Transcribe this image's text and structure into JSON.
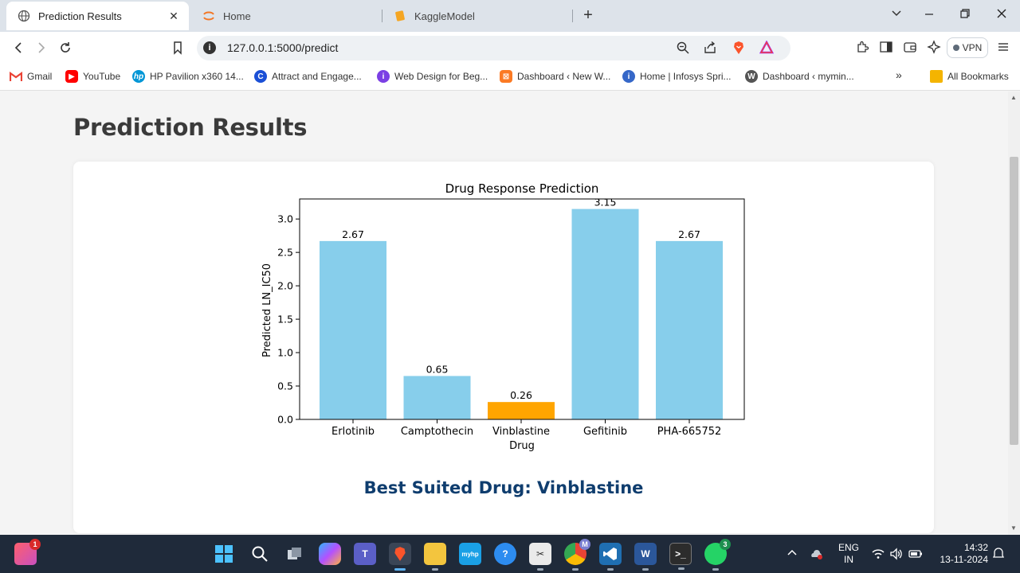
{
  "browser": {
    "tabs": [
      {
        "title": "Prediction Results",
        "active": true
      },
      {
        "title": "Home",
        "active": false
      },
      {
        "title": "KaggleModel",
        "active": false
      }
    ],
    "url": "127.0.0.1:5000/predict",
    "vpn_label": "VPN",
    "bookmarks": [
      {
        "label": "Gmail",
        "icon": "gmail-icon"
      },
      {
        "label": "YouTube",
        "icon": "youtube-icon"
      },
      {
        "label": "HP Pavilion x360 14...",
        "icon": "hp-icon"
      },
      {
        "label": "Attract and Engage...",
        "icon": "c-logo-icon"
      },
      {
        "label": "Web Design for Beg...",
        "icon": "purple-logo-icon"
      },
      {
        "label": "Dashboard ‹ New W...",
        "icon": "xampp-icon"
      },
      {
        "label": "Home | Infosys Spri...",
        "icon": "infosys-icon"
      },
      {
        "label": "Dashboard ‹ mymin...",
        "icon": "wordpress-icon"
      }
    ],
    "all_bookmarks_label": "All Bookmarks"
  },
  "page": {
    "title": "Prediction Results",
    "best_label": "Best Suited Drug: Vinblastine"
  },
  "chart_data": {
    "type": "bar",
    "title": "Drug Response Prediction",
    "xlabel": "Drug",
    "ylabel": "Predicted LN_IC50",
    "categories": [
      "Erlotinib",
      "Camptothecin",
      "Vinblastine",
      "Gefitinib",
      "PHA-665752"
    ],
    "values": [
      2.67,
      0.65,
      0.26,
      3.15,
      2.67
    ],
    "value_labels": [
      "2.67",
      "0.65",
      "0.26",
      "3.15",
      "2.67"
    ],
    "bar_colors": [
      "#87ceeb",
      "#87ceeb",
      "#ffa500",
      "#87ceeb",
      "#87ceeb"
    ],
    "yticks": [
      "0.0",
      "0.5",
      "1.0",
      "1.5",
      "2.0",
      "2.5",
      "3.0"
    ],
    "ylim": [
      0,
      3.3
    ],
    "grid": false,
    "legend": "none"
  },
  "taskbar": {
    "language_top": "ENG",
    "language_bottom": "IN",
    "time": "14:32",
    "date": "13-11-2024",
    "badges": {
      "notifications": "1",
      "whatsapp": "3",
      "chrome_profile": "M"
    }
  },
  "colors": {
    "title_text": "#3a3a3a",
    "best_text": "#0f3d6e",
    "taskbar_bg": "#1f2a3a"
  }
}
